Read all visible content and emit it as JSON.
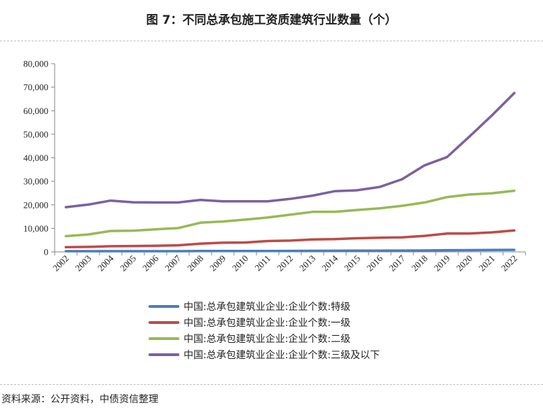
{
  "header": {
    "title": "图 7：不同总承包施工资质建筑行业数量（个）"
  },
  "footer": {
    "source": "资料来源：公开资料，中债资信整理"
  },
  "chart_data": {
    "type": "line",
    "title": "图 7：不同总承包施工资质建筑行业数量（个）",
    "xlabel": "",
    "ylabel": "",
    "ylim": [
      0,
      80000
    ],
    "yticks": [
      0,
      10000,
      20000,
      30000,
      40000,
      50000,
      60000,
      70000,
      80000
    ],
    "ytick_labels": [
      "0",
      "10,000",
      "20,000",
      "30,000",
      "40,000",
      "50,000",
      "60,000",
      "70,000",
      "80,000"
    ],
    "grid": false,
    "legend_position": "bottom",
    "categories": [
      "2002",
      "2003",
      "2004",
      "2005",
      "2006",
      "2007",
      "2008",
      "2009",
      "2010",
      "2011",
      "2012",
      "2013",
      "2014",
      "2015",
      "2016",
      "2017",
      "2018",
      "2019",
      "2020",
      "2021",
      "2022"
    ],
    "series": [
      {
        "name": "中国:总承包建筑业企业:企业个数:特级",
        "color": "#4a7ebb",
        "values": [
          300,
          300,
          300,
          300,
          300,
          300,
          350,
          350,
          380,
          400,
          430,
          450,
          480,
          500,
          530,
          560,
          600,
          700,
          750,
          800,
          850
        ]
      },
      {
        "name": "中国:总承包建筑业企业:企业个数:一级",
        "color": "#be4b48",
        "values": [
          2000,
          2100,
          2400,
          2500,
          2600,
          2800,
          3500,
          3900,
          4000,
          4600,
          4800,
          5300,
          5400,
          5800,
          6000,
          6200,
          6800,
          7800,
          7800,
          8300,
          9100
        ]
      },
      {
        "name": "中国:总承包建筑业企业:企业个数:二级",
        "color": "#98b954",
        "values": [
          6700,
          7400,
          8900,
          9000,
          9600,
          10100,
          12400,
          12900,
          13700,
          14600,
          15800,
          17000,
          17000,
          17800,
          18500,
          19600,
          21000,
          23300,
          24400,
          24900,
          26000
        ]
      },
      {
        "name": "中国:总承包建筑业企业:企业个数:三级及以下",
        "color": "#7d60a0",
        "values": [
          19000,
          20100,
          21800,
          21100,
          21000,
          21000,
          22100,
          21500,
          21500,
          21500,
          22500,
          23900,
          25800,
          26200,
          27600,
          30900,
          36800,
          40300,
          49000,
          58000,
          67500
        ]
      }
    ]
  }
}
